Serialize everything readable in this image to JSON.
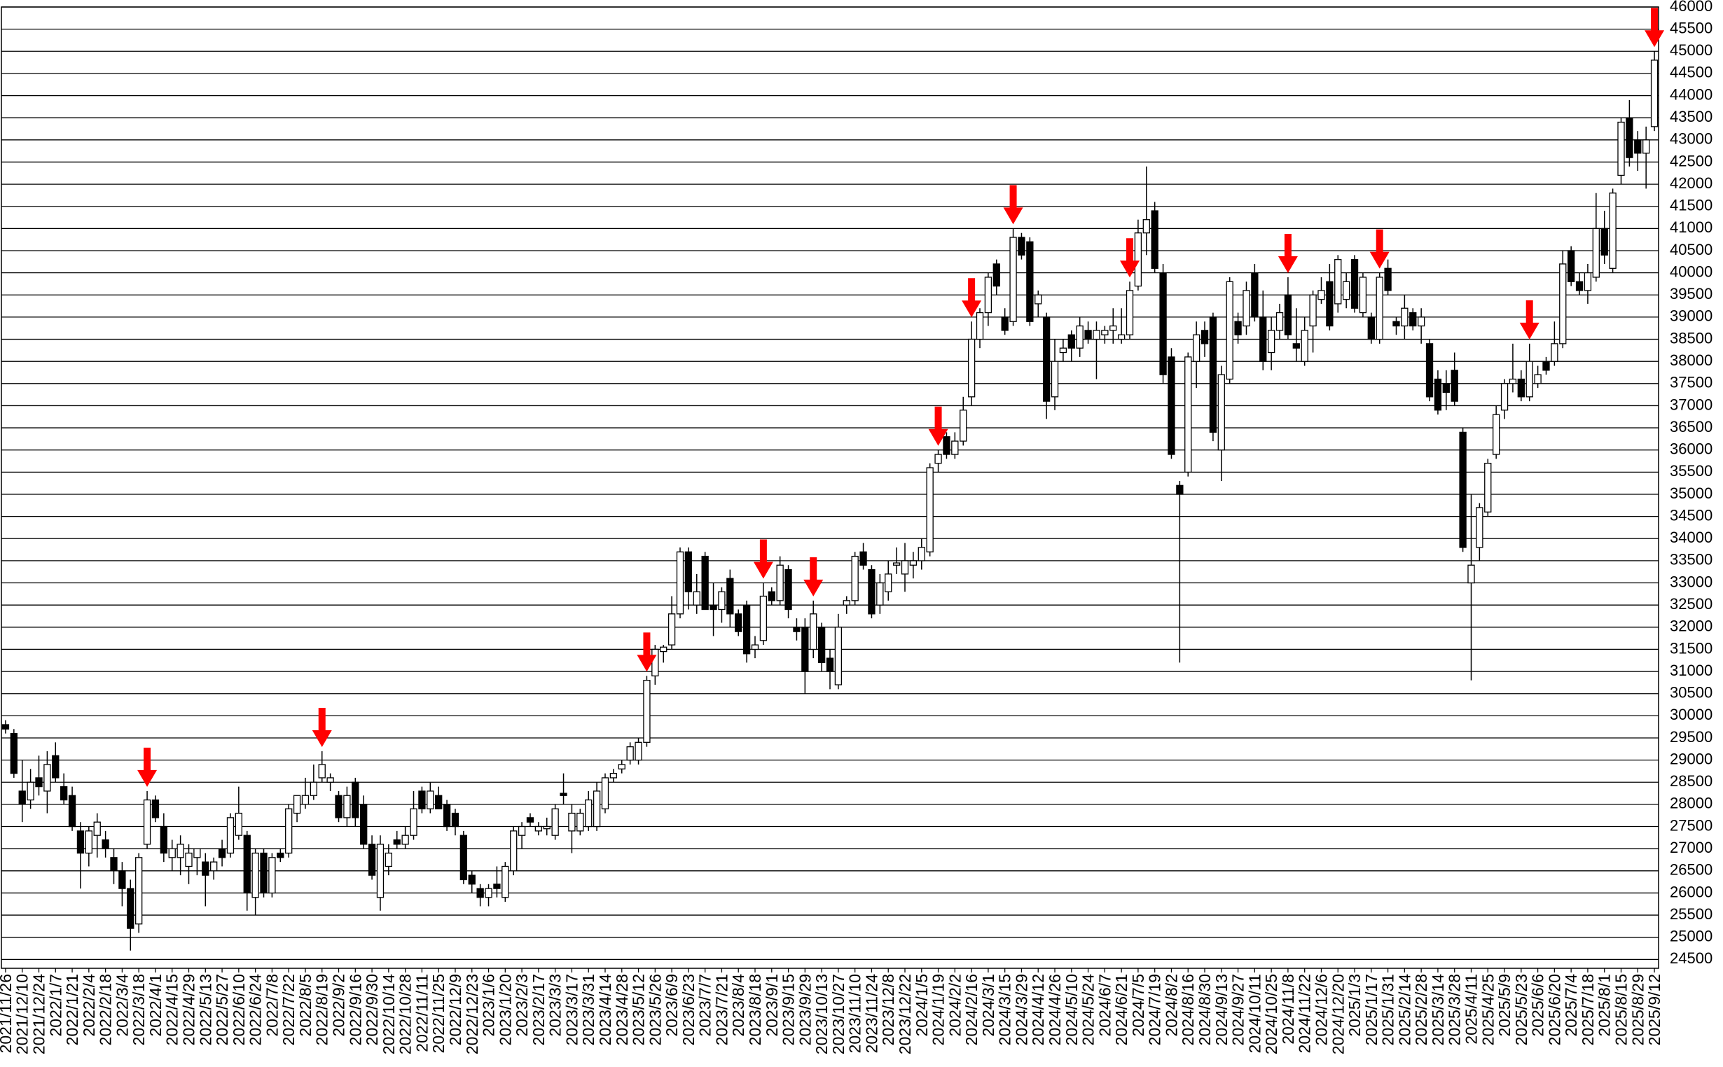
{
  "chart_data": {
    "type": "candlestick",
    "categories": [
      "2021/11/26",
      null,
      "2021/12/10",
      null,
      "2021/12/24",
      null,
      "2022/1/7",
      null,
      "2022/1/21",
      null,
      "2022/2/4",
      null,
      "2022/2/18",
      null,
      "2022/3/4",
      null,
      "2022/3/18",
      null,
      "2022/4/1",
      null,
      "2022/4/15",
      null,
      "2022/4/29",
      null,
      "2022/5/13",
      null,
      "2022/5/27",
      null,
      "2022/6/10",
      null,
      "2022/6/24",
      null,
      "2022/7/8",
      null,
      "2022/7/22",
      null,
      "2022/8/5",
      null,
      "2022/8/19",
      null,
      "2022/9/2",
      null,
      "2022/9/16",
      null,
      "2022/9/30",
      null,
      "2022/10/14",
      null,
      "2022/10/28",
      null,
      "2022/11/11",
      null,
      "2022/11/25",
      null,
      "2022/12/9",
      null,
      "2022/12/23",
      null,
      "2023/1/6",
      null,
      "2023/1/20",
      null,
      "2023/2/3",
      null,
      "2023/2/17",
      null,
      "2023/3/3",
      null,
      "2023/3/17",
      null,
      "2023/3/31",
      null,
      "2023/4/14",
      null,
      "2023/4/28",
      null,
      "2023/5/12",
      null,
      "2023/5/26",
      null,
      "2023/6/9",
      null,
      "2023/6/23",
      null,
      "2023/7/7",
      null,
      "2023/7/21",
      null,
      "2023/8/4",
      null,
      "2023/8/18",
      null,
      "2023/9/1",
      null,
      "2023/9/15",
      null,
      "2023/9/29",
      null,
      "2023/10/13",
      null,
      "2023/10/27",
      null,
      "2023/11/10",
      null,
      "2023/11/24",
      null,
      "2023/12/8",
      null,
      "2023/12/22",
      null,
      "2024/1/5",
      null,
      "2024/1/19",
      null,
      "2024/2/2",
      null,
      "2024/2/16",
      null,
      "2024/3/1",
      null,
      "2024/3/15",
      null,
      "2024/3/29",
      null,
      "2024/4/12",
      null,
      "2024/4/26",
      null,
      "2024/5/10",
      null,
      "2024/5/24",
      null,
      "2024/6/7",
      null,
      "2024/6/21",
      null,
      "2024/7/5",
      null,
      "2024/7/19",
      null,
      "2024/8/2",
      null,
      "2024/8/16",
      null,
      "2024/8/30",
      null,
      "2024/9/13",
      null,
      "2024/9/27",
      null,
      "2024/10/11",
      null,
      "2024/10/25",
      null,
      "2024/11/8",
      null,
      "2024/11/22",
      null,
      "2024/12/6",
      null,
      "2024/12/20",
      null,
      "2025/1/3",
      null,
      "2025/1/17",
      null,
      "2025/1/31",
      null,
      "2025/2/14",
      null,
      "2025/2/28",
      null,
      "2025/3/14",
      null,
      "2025/3/28",
      null,
      "2025/4/11",
      null,
      "2025/4/25",
      null,
      "2025/5/9",
      null,
      "2025/5/23",
      null,
      "2025/6/6",
      null,
      "2025/6/20",
      null,
      "2025/7/4",
      null,
      "2025/7/18",
      null,
      "2025/8/1",
      null,
      "2025/8/15",
      null,
      "2025/8/29",
      null,
      "2025/9/12"
    ],
    "open": [
      29800,
      29600,
      28300,
      28100,
      28600,
      28300,
      29100,
      28400,
      28200,
      27400,
      26900,
      27300,
      27200,
      26800,
      26500,
      26100,
      25300,
      27100,
      28100,
      27500,
      26800,
      26800,
      26600,
      26800,
      26700,
      26500,
      27000,
      26900,
      27300,
      27300,
      25900,
      26900,
      26000,
      26900,
      26900,
      27800,
      28000,
      28200,
      28600,
      28500,
      28200,
      27700,
      28500,
      28000,
      27100,
      25900,
      26600,
      27200,
      27100,
      27300,
      28300,
      27900,
      28200,
      28000,
      27800,
      27300,
      26400,
      26100,
      25900,
      26200,
      25900,
      26500,
      27300,
      27700,
      27400,
      27450,
      27300,
      28250,
      27400,
      27400,
      27500,
      27500,
      27900,
      28600,
      28800,
      29000,
      29000,
      29400,
      30900,
      31450,
      31600,
      32300,
      33700,
      32500,
      33600,
      32500,
      32400,
      33100,
      32300,
      32500,
      31500,
      31700,
      32800,
      32600,
      33300,
      32000,
      32000,
      31500,
      32000,
      31300,
      30700,
      32500,
      32600,
      33700,
      33300,
      32500,
      32800,
      33400,
      33200,
      33400,
      33500,
      33700,
      35700,
      36300,
      35900,
      36200,
      37200,
      38500,
      39100,
      40200,
      39000,
      38900,
      40800,
      40700,
      39300,
      39000,
      37200,
      38200,
      38600,
      38300,
      38700,
      38500,
      38600,
      38700,
      38500,
      38600,
      39700,
      40900,
      41400,
      40000,
      38100,
      35200,
      35500,
      38000,
      38700,
      39000,
      36000,
      37600,
      38900,
      38800,
      40000,
      39000,
      38200,
      38700,
      39500,
      38400,
      38000,
      38800,
      39400,
      39800,
      39300,
      39400,
      40300,
      39100,
      39000,
      38500,
      40100,
      38900,
      38800,
      39100,
      38800,
      38400,
      37600,
      37500,
      37800,
      36400,
      33000,
      33800,
      34600,
      35900,
      36900,
      37500,
      37600,
      37200,
      37500,
      38000,
      38000,
      38400,
      40500,
      39800,
      39600,
      39900,
      41000,
      40100,
      42200,
      43500,
      43000,
      42700,
      43300
    ],
    "high": [
      29900,
      29700,
      29000,
      28800,
      29100,
      29200,
      29400,
      28700,
      28400,
      27600,
      27500,
      27800,
      27400,
      27000,
      26700,
      26300,
      26900,
      28300,
      28200,
      27800,
      27200,
      27300,
      27100,
      27000,
      26900,
      26800,
      27200,
      27800,
      28400,
      27400,
      27000,
      27000,
      26900,
      27000,
      28000,
      28200,
      28600,
      28900,
      29200,
      28700,
      28300,
      28400,
      28600,
      28200,
      27300,
      27300,
      27100,
      27400,
      27500,
      28300,
      28400,
      28500,
      28400,
      28100,
      27900,
      27400,
      26500,
      26200,
      26200,
      26600,
      26700,
      27500,
      27600,
      27800,
      27600,
      27700,
      28000,
      28700,
      28000,
      27900,
      28300,
      28500,
      28700,
      28800,
      29000,
      29400,
      29500,
      30900,
      31600,
      31600,
      32700,
      33800,
      33800,
      33200,
      33700,
      33000,
      32900,
      33300,
      32400,
      32600,
      31800,
      33000,
      32900,
      33600,
      33400,
      32200,
      32200,
      32600,
      32100,
      31500,
      32300,
      32700,
      33700,
      33900,
      33400,
      33200,
      33500,
      33800,
      33900,
      33700,
      34000,
      35700,
      36000,
      36400,
      36400,
      37200,
      38900,
      39200,
      40000,
      40300,
      39200,
      41000,
      40900,
      40800,
      39600,
      39100,
      38500,
      38500,
      38700,
      39000,
      38900,
      38900,
      38800,
      39200,
      39200,
      39800,
      41200,
      42400,
      41600,
      40200,
      38300,
      35300,
      38200,
      38900,
      38900,
      39100,
      37900,
      39900,
      39100,
      39800,
      40200,
      39600,
      39000,
      39300,
      39900,
      39200,
      39000,
      39600,
      39900,
      40200,
      40400,
      40000,
      40400,
      40000,
      39100,
      40000,
      40300,
      39000,
      39500,
      39200,
      39200,
      38500,
      37800,
      37800,
      38200,
      36500,
      35000,
      34800,
      35800,
      37000,
      37600,
      38400,
      37800,
      38400,
      37900,
      38100,
      38900,
      40500,
      40600,
      40000,
      40200,
      41800,
      41400,
      41900,
      43500,
      43900,
      43200,
      43300,
      45000
    ],
    "low": [
      29600,
      28600,
      27600,
      27900,
      28200,
      27800,
      28500,
      28000,
      27400,
      26100,
      26600,
      26800,
      26800,
      26200,
      25700,
      24700,
      25100,
      27000,
      27600,
      26700,
      26500,
      26400,
      26200,
      26400,
      25700,
      26300,
      26600,
      26800,
      27200,
      25600,
      25500,
      25900,
      25900,
      26700,
      26800,
      27600,
      27900,
      28100,
      28500,
      28300,
      27600,
      27500,
      27500,
      27000,
      26300,
      25600,
      26400,
      27000,
      27000,
      27200,
      27800,
      27800,
      27900,
      27400,
      27300,
      26200,
      26000,
      25700,
      25700,
      25900,
      25800,
      26400,
      27000,
      27500,
      27300,
      27300,
      27200,
      28000,
      26900,
      27300,
      27400,
      27400,
      27800,
      28500,
      28700,
      28900,
      28900,
      29300,
      30700,
      31200,
      31500,
      32200,
      32400,
      32300,
      32400,
      31800,
      32100,
      32000,
      31800,
      31200,
      31300,
      31600,
      32500,
      32500,
      32200,
      31700,
      30500,
      31300,
      31000,
      30600,
      30600,
      32300,
      32500,
      33300,
      32200,
      32300,
      32600,
      33200,
      32800,
      33100,
      33300,
      33600,
      35500,
      35800,
      35800,
      36100,
      37000,
      38300,
      38800,
      39500,
      38600,
      38800,
      40300,
      38800,
      39000,
      36700,
      36900,
      38000,
      38000,
      38100,
      38400,
      37600,
      38400,
      38400,
      38400,
      38500,
      39600,
      40400,
      40000,
      37500,
      35800,
      31200,
      35400,
      37400,
      38100,
      36200,
      35300,
      37500,
      38400,
      38600,
      38900,
      37800,
      37800,
      38500,
      38500,
      38000,
      37900,
      38200,
      39300,
      38700,
      39100,
      39200,
      39100,
      39000,
      38400,
      38400,
      39500,
      38600,
      38500,
      38700,
      38400,
      37100,
      36800,
      36900,
      37000,
      33700,
      30800,
      33500,
      34500,
      35800,
      36700,
      37300,
      37100,
      37100,
      37400,
      37700,
      37900,
      38300,
      39700,
      39500,
      39300,
      39800,
      40200,
      40000,
      42000,
      42400,
      42300,
      41900,
      43200
    ],
    "close": [
      29700,
      28700,
      28000,
      28500,
      28400,
      28900,
      28600,
      28100,
      27500,
      26900,
      27400,
      27600,
      27000,
      26500,
      26100,
      25200,
      26800,
      28100,
      27700,
      26900,
      27000,
      27100,
      26900,
      27000,
      26400,
      26700,
      26800,
      27700,
      27800,
      26000,
      26900,
      26000,
      26800,
      26800,
      27900,
      28200,
      28200,
      28500,
      28900,
      28600,
      27700,
      28200,
      27700,
      27100,
      26400,
      27100,
      26900,
      27100,
      27300,
      27900,
      27900,
      28300,
      27900,
      27500,
      27500,
      26300,
      26200,
      25900,
      26100,
      26100,
      26600,
      27400,
      27500,
      27600,
      27500,
      27500,
      27900,
      28200,
      27800,
      27800,
      28100,
      28300,
      28600,
      28700,
      28900,
      29300,
      29400,
      30800,
      31500,
      31550,
      32300,
      33700,
      32800,
      32800,
      32400,
      32400,
      32800,
      32300,
      31900,
      31400,
      31600,
      32700,
      32600,
      33400,
      32400,
      31900,
      31000,
      32300,
      31200,
      31000,
      32000,
      32600,
      33600,
      33400,
      32300,
      33000,
      33200,
      33450,
      33500,
      33500,
      33800,
      35600,
      35900,
      35900,
      36200,
      36900,
      38500,
      39100,
      39900,
      39700,
      38700,
      40800,
      40400,
      38900,
      39500,
      37100,
      38000,
      38300,
      38300,
      38800,
      38500,
      38700,
      38700,
      38800,
      38600,
      39600,
      40900,
      41200,
      40100,
      37700,
      35900,
      35000,
      38100,
      38600,
      38400,
      36400,
      37700,
      39800,
      38600,
      39600,
      39000,
      38000,
      38700,
      39100,
      38600,
      38300,
      38700,
      39500,
      39600,
      38800,
      40300,
      39800,
      39200,
      39900,
      38500,
      39900,
      39600,
      38800,
      39200,
      38800,
      39000,
      37200,
      36900,
      37300,
      37100,
      33800,
      33400,
      34700,
      35700,
      36800,
      37500,
      37600,
      37200,
      38000,
      37700,
      37800,
      38400,
      40200,
      39800,
      39600,
      40000,
      41000,
      40400,
      41800,
      43400,
      42600,
      42700,
      43000,
      44800
    ],
    "ylim": [
      24300,
      46000
    ],
    "yticks": [
      24500,
      25000,
      25500,
      26000,
      26500,
      27000,
      27500,
      28000,
      28500,
      29000,
      29500,
      30000,
      30500,
      31000,
      31500,
      32000,
      32500,
      33000,
      33500,
      34000,
      34500,
      35000,
      35500,
      36000,
      36500,
      37000,
      37500,
      38000,
      38500,
      39000,
      39500,
      40000,
      40500,
      41000,
      41500,
      42000,
      42500,
      43000,
      43500,
      44000,
      44500,
      45000,
      45500,
      46000
    ],
    "grid": true,
    "up_color": "#ffffff",
    "down_color": "#000000",
    "line_color": "#000000",
    "signal_color": "#ff0000"
  }
}
